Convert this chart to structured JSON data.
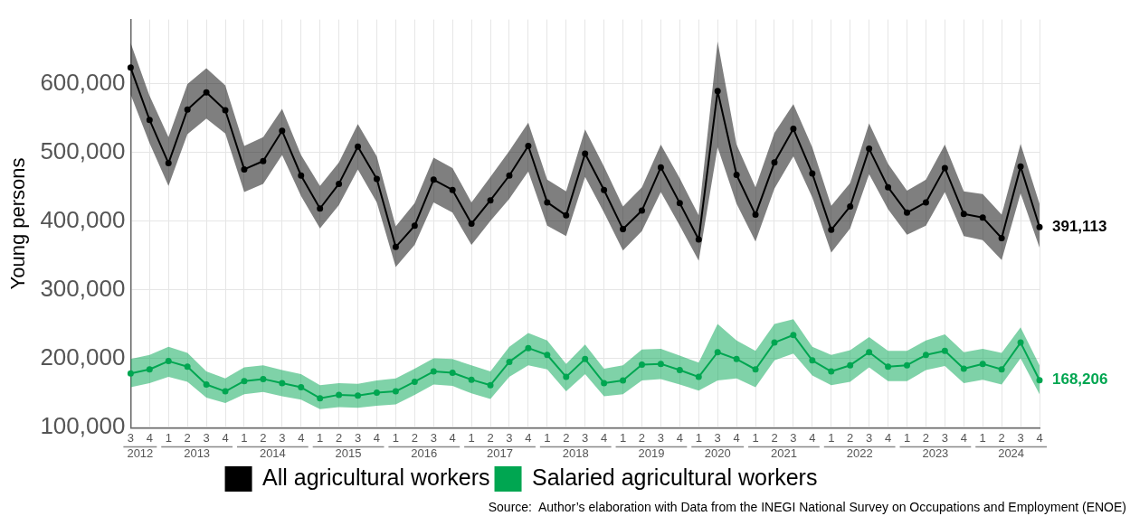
{
  "chart_data": {
    "type": "line",
    "ylabel": "Young persons",
    "categories": [
      "3",
      "4",
      "1",
      "2",
      "3",
      "4",
      "1",
      "2",
      "3",
      "4",
      "1",
      "2",
      "3",
      "4",
      "1",
      "2",
      "3",
      "4",
      "1",
      "2",
      "3",
      "4",
      "1",
      "2",
      "3",
      "4",
      "1",
      "2",
      "3",
      "4",
      "1",
      "3",
      "4",
      "1",
      "2",
      "3",
      "4",
      "1",
      "2",
      "3",
      "4",
      "1",
      "2",
      "3",
      "4",
      "1",
      "2",
      "3",
      "4"
    ],
    "ylim": [
      99000,
      693000
    ],
    "yticks": [
      {
        "value": 100000,
        "label": "100,000"
      },
      {
        "value": 200000,
        "label": "200,000"
      },
      {
        "value": 300000,
        "label": "300,000"
      },
      {
        "value": 400000,
        "label": "400,000"
      },
      {
        "value": 500000,
        "label": "500,000"
      },
      {
        "value": 600000,
        "label": "600,000"
      }
    ],
    "grid": true,
    "legend": "bottom",
    "marker": "circle",
    "line_style": "solid",
    "series": [
      {
        "name": "All agricultural workers",
        "color": "#000000",
        "values": [
          623000,
          547000,
          484000,
          562000,
          587000,
          561000,
          475000,
          487000,
          531000,
          466000,
          418000,
          454000,
          508000,
          461000,
          362000,
          393000,
          460000,
          445000,
          396000,
          430000,
          466000,
          509000,
          427000,
          408000,
          498000,
          445000,
          388000,
          415000,
          478000,
          426000,
          373000,
          589000,
          467000,
          409000,
          485000,
          534000,
          469000,
          387000,
          421000,
          505000,
          449000,
          412000,
          427000,
          477000,
          410000,
          405000,
          375000,
          479000,
          391113
        ],
        "lower": [
          584000,
          513000,
          451000,
          526000,
          549000,
          527000,
          442000,
          454000,
          496000,
          436000,
          389000,
          423000,
          475000,
          427000,
          333000,
          365000,
          427000,
          412000,
          365000,
          400000,
          432000,
          472000,
          393000,
          378000,
          464000,
          412000,
          357000,
          385000,
          442000,
          393000,
          342000,
          507000,
          425000,
          370000,
          447000,
          494000,
          434000,
          354000,
          389000,
          468000,
          417000,
          380000,
          393000,
          442000,
          378000,
          372000,
          343000,
          440000,
          361000
        ],
        "upper": [
          659000,
          582000,
          522000,
          599000,
          622000,
          597000,
          509000,
          522000,
          563000,
          496000,
          451000,
          485000,
          541000,
          494000,
          392000,
          426000,
          492000,
          477000,
          427000,
          464000,
          502000,
          543000,
          460000,
          443000,
          533000,
          479000,
          421000,
          449000,
          511000,
          462000,
          408000,
          661000,
          511000,
          449000,
          528000,
          570000,
          507000,
          422000,
          455000,
          542000,
          483000,
          444000,
          460000,
          511000,
          443000,
          439000,
          409000,
          512000,
          425000
        ],
        "value_labels": [
          null,
          null,
          null,
          null,
          null,
          null,
          null,
          null,
          null,
          null,
          null,
          null,
          null,
          null,
          null,
          null,
          null,
          null,
          null,
          null,
          null,
          null,
          null,
          null,
          null,
          null,
          null,
          null,
          null,
          null,
          null,
          null,
          null,
          null,
          null,
          null,
          null,
          null,
          null,
          null,
          null,
          null,
          null,
          null,
          null,
          null,
          null,
          null,
          "391,113"
        ]
      },
      {
        "name": "Salaried agricultural workers",
        "color": "#00a651",
        "values": [
          178000,
          184000,
          196000,
          188000,
          162000,
          152000,
          167000,
          170000,
          164000,
          158000,
          142000,
          147000,
          146000,
          150000,
          152000,
          166000,
          181000,
          179000,
          169000,
          161000,
          195000,
          215000,
          205000,
          173000,
          199000,
          164000,
          168000,
          191000,
          192000,
          183000,
          173000,
          209000,
          199000,
          184000,
          223000,
          234000,
          197000,
          181000,
          190000,
          209000,
          188000,
          190000,
          205000,
          211000,
          185000,
          192000,
          184000,
          223000,
          168206
        ],
        "lower": [
          158000,
          164000,
          173000,
          166000,
          143000,
          135000,
          148000,
          151000,
          145000,
          140000,
          126000,
          129000,
          128000,
          131000,
          133000,
          147000,
          162000,
          160000,
          149000,
          141000,
          173000,
          190000,
          184000,
          152000,
          177000,
          145000,
          148000,
          168000,
          170000,
          162000,
          153000,
          168000,
          171000,
          158000,
          197000,
          207000,
          175000,
          161000,
          166000,
          187000,
          167000,
          167000,
          183000,
          189000,
          164000,
          169000,
          162000,
          200000,
          148000
        ],
        "upper": [
          199000,
          205000,
          217000,
          208000,
          181000,
          171000,
          187000,
          190000,
          183000,
          177000,
          161000,
          164000,
          163000,
          168000,
          171000,
          185000,
          200000,
          199000,
          190000,
          181000,
          217000,
          237000,
          226000,
          192000,
          220000,
          185000,
          190000,
          213000,
          214000,
          204000,
          194000,
          250000,
          226000,
          211000,
          250000,
          257000,
          217000,
          205000,
          212000,
          231000,
          211000,
          211000,
          226000,
          235000,
          209000,
          214000,
          208000,
          245000,
          190000
        ],
        "value_labels": [
          null,
          null,
          null,
          null,
          null,
          null,
          null,
          null,
          null,
          null,
          null,
          null,
          null,
          null,
          null,
          null,
          null,
          null,
          null,
          null,
          null,
          null,
          null,
          null,
          null,
          null,
          null,
          null,
          null,
          null,
          null,
          null,
          null,
          null,
          null,
          null,
          null,
          null,
          null,
          null,
          null,
          null,
          null,
          null,
          null,
          null,
          null,
          null,
          "168,206"
        ]
      }
    ],
    "annotations": [
      "2012",
      "2013",
      "2014",
      "2015",
      "2016",
      "2017",
      "2018",
      "2019",
      "2020",
      "2021",
      "2022",
      "2023",
      "2024",
      "Source:  Author’s elaboration with Data from the INEGI National Survey on Occupations and Employment (ENOE)"
    ]
  }
}
